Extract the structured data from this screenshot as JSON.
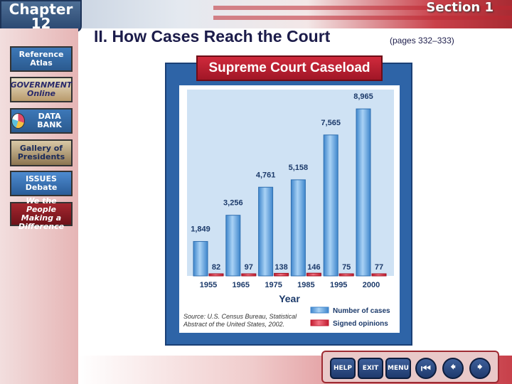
{
  "header": {
    "chapter_label": "Chapter",
    "chapter_number": "12",
    "section_label": "Section 1"
  },
  "sidebar": {
    "items": [
      {
        "label": "Reference Atlas"
      },
      {
        "label": "GOVERNMENT Online"
      },
      {
        "label": "DATA BANK"
      },
      {
        "label": "Gallery of Presidents"
      },
      {
        "label": "ISSUES Debate"
      },
      {
        "label": "We the People Making a Difference"
      }
    ]
  },
  "slide": {
    "title": "II.  How Cases Reach the Court",
    "page_ref": "(pages 332–333)"
  },
  "nav": {
    "help_label": "HELP",
    "exit_label": "EXIT",
    "menu_label": "MENU",
    "first_icon": "first-arrow-icon",
    "prev_icon": "prev-arrow-icon",
    "next_icon": "next-arrow-icon"
  },
  "colors": {
    "cases_bar": "#5aa0e0",
    "opinions_bar": "#e03a4e",
    "frame": "#2e64a7",
    "title_red": "#c8222f"
  },
  "chart_data": {
    "type": "bar",
    "title": "Supreme Court Caseload",
    "xlabel": "Year",
    "ylabel": "",
    "categories": [
      "1955",
      "1965",
      "1975",
      "1985",
      "1995",
      "2000"
    ],
    "series": [
      {
        "name": "Number of cases",
        "values": [
          1849,
          3256,
          4761,
          5158,
          7565,
          8965
        ],
        "labels": [
          "1,849",
          "3,256",
          "4,761",
          "5,158",
          "7,565",
          "8,965"
        ]
      },
      {
        "name": "Signed opinions",
        "values": [
          82,
          97,
          138,
          146,
          75,
          77
        ],
        "labels": [
          "82",
          "97",
          "138",
          "146",
          "75",
          "77"
        ]
      }
    ],
    "ylim": [
      0,
      10000
    ],
    "grid": false,
    "legend": "bottom-right",
    "source_line1": "Source: U.S. Census Bureau, Statistical",
    "source_line2": "Abstract of the United States, 2002."
  }
}
